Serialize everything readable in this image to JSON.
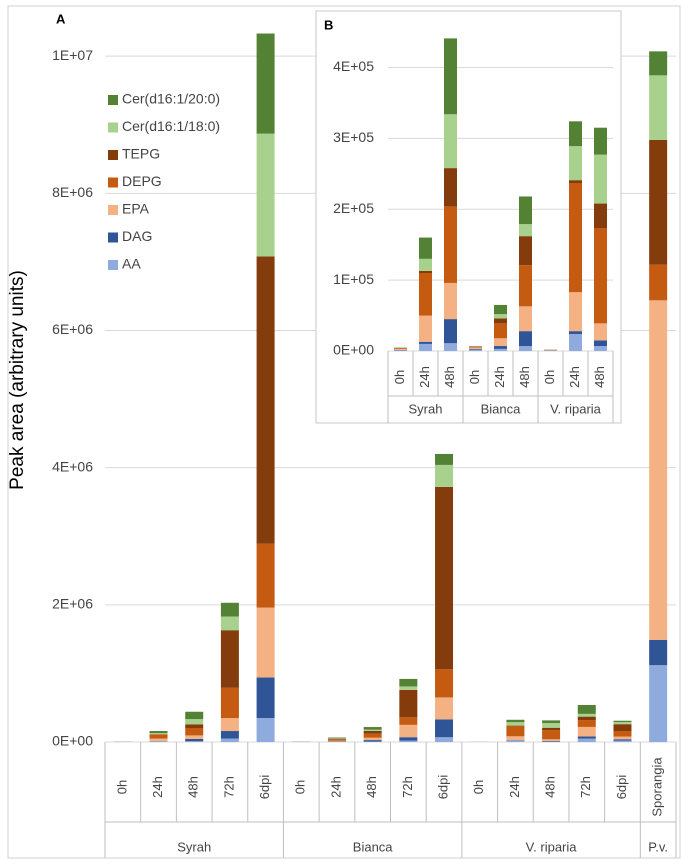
{
  "chart_data": [
    {
      "type": "stacked_bar",
      "panel": "A",
      "y_label": "Peak area (arbitrary units)",
      "groups": [
        {
          "label": "Syrah",
          "categories": [
            "0h",
            "24h",
            "48h",
            "72h",
            "6dpi"
          ]
        },
        {
          "label": "Bianca",
          "categories": [
            "0h",
            "24h",
            "48h",
            "72h",
            "6dpi"
          ]
        },
        {
          "label": "V. riparia",
          "categories": [
            "0h",
            "24h",
            "48h",
            "72h",
            "6dpi"
          ]
        },
        {
          "label": "P.v.",
          "categories": [
            "Sporangia"
          ]
        }
      ],
      "series": [
        {
          "name": "AA",
          "color": "#8faadc",
          "values": [
            1000,
            10000,
            11000,
            50000,
            350000,
            2000,
            3000,
            7000,
            20000,
            70000,
            500,
            24000,
            7000,
            50000,
            20000,
            1120000
          ]
        },
        {
          "name": "DAG",
          "color": "#2f5597",
          "values": [
            500,
            3000,
            34000,
            110000,
            590000,
            1000,
            4000,
            21000,
            50000,
            260000,
            300,
            4000,
            8000,
            30000,
            20000,
            370000
          ]
        },
        {
          "name": "EPA",
          "color": "#f4b183",
          "values": [
            1500,
            37000,
            51000,
            190000,
            1020000,
            2000,
            11000,
            35000,
            180000,
            320000,
            500,
            55000,
            24000,
            140000,
            40000,
            4950000
          ]
        },
        {
          "name": "DEPG",
          "color": "#c55a11",
          "values": [
            1000,
            60000,
            108000,
            440000,
            930000,
            1000,
            21000,
            58000,
            110000,
            410000,
            300,
            154000,
            134000,
            100000,
            80000,
            520000
          ]
        },
        {
          "name": "TEPG",
          "color": "#843c0c",
          "values": [
            500,
            3000,
            54000,
            840000,
            4190000,
            500,
            7000,
            41000,
            400000,
            2660000,
            200,
            4000,
            35000,
            50000,
            100000,
            1820000
          ]
        },
        {
          "name": "Cer(d16:1/18:0)",
          "color": "#a9d18e",
          "values": [
            300,
            17000,
            76000,
            200000,
            1790000,
            300,
            6000,
            17000,
            50000,
            320000,
            100,
            48000,
            69000,
            40000,
            30000,
            940000
          ]
        },
        {
          "name": "Cer(d16:1/20:0)",
          "color": "#548235",
          "values": [
            200,
            30000,
            107000,
            200000,
            1460000,
            200,
            13000,
            39000,
            110000,
            160000,
            100,
            35000,
            38000,
            130000,
            20000,
            350000
          ]
        }
      ],
      "ylim": [
        0,
        10600000
      ],
      "yticks": [
        {
          "value": 0,
          "label": "0E+00"
        },
        {
          "value": 2000000,
          "label": "2E+06"
        },
        {
          "value": 4000000,
          "label": "4E+06"
        },
        {
          "value": 6000000,
          "label": "6E+06"
        },
        {
          "value": 8000000,
          "label": "8E+06"
        },
        {
          "value": 10000000,
          "label": "1E+07"
        }
      ],
      "grid": true,
      "legend": "upper left"
    },
    {
      "type": "stacked_bar",
      "panel": "B",
      "groups": [
        {
          "label": "Syrah",
          "categories": [
            "0h",
            "24h",
            "48h"
          ]
        },
        {
          "label": "Bianca",
          "categories": [
            "0h",
            "24h",
            "48h"
          ]
        },
        {
          "label": "V. riparia",
          "categories": [
            "0h",
            "24h",
            "48h"
          ]
        }
      ],
      "series": [
        {
          "name": "AA",
          "color": "#8faadc",
          "values": [
            1000,
            10000,
            11000,
            2000,
            3000,
            7000,
            500,
            24000,
            7000
          ]
        },
        {
          "name": "DAG",
          "color": "#2f5597",
          "values": [
            500,
            3000,
            34000,
            1000,
            4000,
            21000,
            300,
            4000,
            8000
          ]
        },
        {
          "name": "EPA",
          "color": "#f4b183",
          "values": [
            1500,
            37000,
            51000,
            2000,
            11000,
            35000,
            500,
            55000,
            24000
          ]
        },
        {
          "name": "DEPG",
          "color": "#c55a11",
          "values": [
            1000,
            60000,
            108000,
            1000,
            21000,
            58000,
            300,
            154000,
            134000
          ]
        },
        {
          "name": "TEPG",
          "color": "#843c0c",
          "values": [
            500,
            3000,
            54000,
            500,
            7000,
            41000,
            200,
            4000,
            35000
          ]
        },
        {
          "name": "Cer(d16:1/18:0)",
          "color": "#a9d18e",
          "values": [
            300,
            17000,
            76000,
            300,
            6000,
            17000,
            100,
            48000,
            69000
          ]
        },
        {
          "name": "Cer(d16:1/20:0)",
          "color": "#548235",
          "values": [
            200,
            30000,
            107000,
            200,
            13000,
            39000,
            100,
            35000,
            38000
          ]
        }
      ],
      "ylim": [
        0,
        450000
      ],
      "yticks": [
        {
          "value": 0,
          "label": "0E+00"
        },
        {
          "value": 100000,
          "label": "1E+05"
        },
        {
          "value": 200000,
          "label": "2E+05"
        },
        {
          "value": 300000,
          "label": "3E+05"
        },
        {
          "value": 400000,
          "label": "4E+05"
        }
      ],
      "grid": true
    }
  ]
}
